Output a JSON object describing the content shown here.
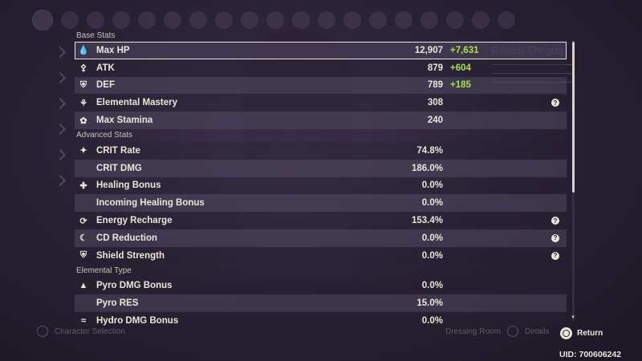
{
  "background": {
    "character_name": "Raiden Shogun",
    "bottom_left_label": "Character Selection",
    "bottom_right_labels": [
      "Dressing Room",
      "Details"
    ]
  },
  "base_stats": {
    "header": "Base Stats",
    "rows": [
      {
        "icon": "hp-icon",
        "label": "Max HP",
        "value": "12,907",
        "bonus": "+7,631",
        "help": false
      },
      {
        "icon": "atk-icon",
        "label": "ATK",
        "value": "879",
        "bonus": "+604",
        "help": false
      },
      {
        "icon": "def-icon",
        "label": "DEF",
        "value": "789",
        "bonus": "+185",
        "help": false
      },
      {
        "icon": "elemental-mastery-icon",
        "label": "Elemental Mastery",
        "value": "308",
        "bonus": "",
        "help": true
      },
      {
        "icon": "stamina-icon",
        "label": "Max Stamina",
        "value": "240",
        "bonus": "",
        "help": false
      }
    ]
  },
  "advanced_stats": {
    "header": "Advanced Stats",
    "rows": [
      {
        "icon": "crit-icon",
        "label": "CRIT Rate",
        "value": "74.8%",
        "help": false
      },
      {
        "icon": "",
        "label": "CRIT DMG",
        "value": "186.0%",
        "help": false
      },
      {
        "icon": "healing-icon",
        "label": "Healing Bonus",
        "value": "0.0%",
        "help": false
      },
      {
        "icon": "",
        "label": "Incoming Healing Bonus",
        "value": "0.0%",
        "help": false
      },
      {
        "icon": "energy-recharge-icon",
        "label": "Energy Recharge",
        "value": "153.4%",
        "help": true
      },
      {
        "icon": "cd-reduction-icon",
        "label": "CD Reduction",
        "value": "0.0%",
        "help": true
      },
      {
        "icon": "shield-icon",
        "label": "Shield Strength",
        "value": "0.0%",
        "help": true
      }
    ]
  },
  "elemental_type": {
    "header": "Elemental Type",
    "rows": [
      {
        "icon": "pyro-icon",
        "label": "Pyro DMG Bonus",
        "value": "0.0%"
      },
      {
        "icon": "",
        "label": "Pyro RES",
        "value": "15.0%"
      },
      {
        "icon": "hydro-icon",
        "label": "Hydro DMG Bonus",
        "value": "0.0%"
      }
    ]
  },
  "footer": {
    "return_label": "Return",
    "uid": "UID: 700606242"
  },
  "help_glyph": "?",
  "colors": {
    "bonus_green": "#a7e04a",
    "text": "#ece5d8",
    "background": "#2a2236"
  }
}
